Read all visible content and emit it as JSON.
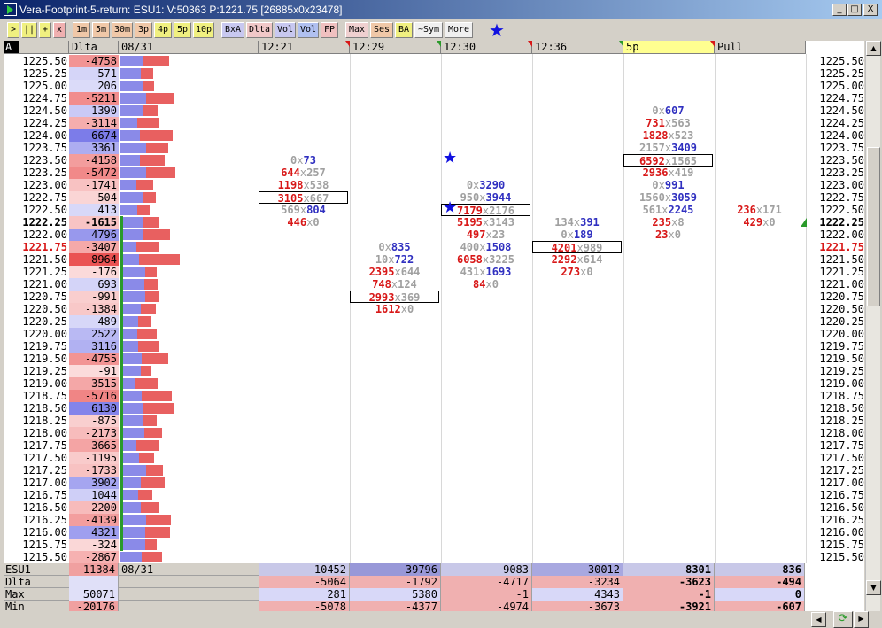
{
  "window": {
    "title": "Vera-Footprint-5-return: ESU1: V:50363 P:1221.75 [26885x0x23478]",
    "min": "_",
    "max": "□",
    "close": "X"
  },
  "toolbar": [
    {
      "label": ">",
      "bg": "#f0f080",
      "w": 14
    },
    {
      "label": "||",
      "bg": "#f0f080",
      "w": 18
    },
    {
      "label": "+",
      "bg": "#f0f080",
      "w": 14
    },
    {
      "label": "x",
      "bg": "#f0b0b0",
      "w": 14
    },
    {
      "label": "1m",
      "bg": "#f0c8a8",
      "w": 20
    },
    {
      "label": "5m",
      "bg": "#f0c8a8",
      "w": 20
    },
    {
      "label": "30m",
      "bg": "#f0c8a8",
      "w": 24
    },
    {
      "label": "3p",
      "bg": "#f0c8a8",
      "w": 20
    },
    {
      "label": "4p",
      "bg": "#f0f080",
      "w": 20
    },
    {
      "label": "5p",
      "bg": "#f0f080",
      "w": 20
    },
    {
      "label": "10p",
      "bg": "#f0f080",
      "w": 24
    },
    {
      "label": "BxA",
      "bg": "#c8c8f0",
      "w": 26
    },
    {
      "label": "Dlta",
      "bg": "#f0c8c8",
      "w": 30
    },
    {
      "label": "Vol",
      "bg": "#c8c8f0",
      "w": 24
    },
    {
      "label": "Vol",
      "bg": "#b0c0f0",
      "w": 24
    },
    {
      "label": "FP",
      "bg": "#f0c0c0",
      "w": 20
    },
    {
      "label": "Max",
      "bg": "#f0d0d0",
      "w": 26
    },
    {
      "label": "Ses",
      "bg": "#f0c8a8",
      "w": 26
    },
    {
      "label": "BA",
      "bg": "#f0f080",
      "w": 20
    },
    {
      "label": "~Sym",
      "bg": "#f0f0f0",
      "w": 32
    },
    {
      "label": "More",
      "bg": "#f0f0f0",
      "w": 32
    }
  ],
  "header": {
    "a": "A",
    "dlta": "Dlta",
    "date": "08/31",
    "times": [
      "12:21",
      "12:29",
      "12:30",
      "12:36",
      "5p",
      "Pull"
    ]
  },
  "rows": [
    {
      "p": "1225.50",
      "d": "-4758"
    },
    {
      "p": "1225.25",
      "d": "571"
    },
    {
      "p": "1225.00",
      "d": "206"
    },
    {
      "p": "1224.75",
      "d": "-5211"
    },
    {
      "p": "1224.50",
      "d": "1390"
    },
    {
      "p": "1224.25",
      "d": "-3114"
    },
    {
      "p": "1224.00",
      "d": "6674"
    },
    {
      "p": "1223.75",
      "d": "3361"
    },
    {
      "p": "1223.50",
      "d": "-4158"
    },
    {
      "p": "1223.25",
      "d": "-5472"
    },
    {
      "p": "1223.00",
      "d": "-1741"
    },
    {
      "p": "1222.75",
      "d": "-504"
    },
    {
      "p": "1222.50",
      "d": "413"
    },
    {
      "p": "1222.25",
      "d": "-1615"
    },
    {
      "p": "1222.00",
      "d": "4796"
    },
    {
      "p": "1221.75",
      "d": "-3407"
    },
    {
      "p": "1221.50",
      "d": "-8964"
    },
    {
      "p": "1221.25",
      "d": "-176"
    },
    {
      "p": "1221.00",
      "d": "693"
    },
    {
      "p": "1220.75",
      "d": "-991"
    },
    {
      "p": "1220.50",
      "d": "-1384"
    },
    {
      "p": "1220.25",
      "d": "489"
    },
    {
      "p": "1220.00",
      "d": "2522"
    },
    {
      "p": "1219.75",
      "d": "3116"
    },
    {
      "p": "1219.50",
      "d": "-4755"
    },
    {
      "p": "1219.25",
      "d": "-91"
    },
    {
      "p": "1219.00",
      "d": "-3515"
    },
    {
      "p": "1218.75",
      "d": "-5716"
    },
    {
      "p": "1218.50",
      "d": "6130"
    },
    {
      "p": "1218.25",
      "d": "-875"
    },
    {
      "p": "1218.00",
      "d": "-2173"
    },
    {
      "p": "1217.75",
      "d": "-3665"
    },
    {
      "p": "1217.50",
      "d": "-1195"
    },
    {
      "p": "1217.25",
      "d": "-1733"
    },
    {
      "p": "1217.00",
      "d": "3902"
    },
    {
      "p": "1216.75",
      "d": "1044"
    },
    {
      "p": "1216.50",
      "d": "-2200"
    },
    {
      "p": "1216.25",
      "d": "-4139"
    },
    {
      "p": "1216.00",
      "d": "4321"
    },
    {
      "p": "1215.75",
      "d": "-324"
    },
    {
      "p": "1215.50",
      "d": "-2867"
    }
  ],
  "footprint": [
    [
      {
        "r": 8,
        "b": "0",
        "a": "73"
      },
      {
        "r": 9,
        "b": "644",
        "a": "257"
      },
      {
        "r": 10,
        "b": "1198",
        "a": "538"
      },
      {
        "r": 11,
        "b": "3105",
        "a": "667",
        "box": true
      },
      {
        "r": 12,
        "b": "569",
        "a": "804"
      },
      {
        "r": 13,
        "b": "446",
        "a": "0"
      }
    ],
    [
      {
        "r": 15,
        "b": "0",
        "a": "835"
      },
      {
        "r": 16,
        "b": "10",
        "a": "722"
      },
      {
        "r": 17,
        "b": "2395",
        "a": "644"
      },
      {
        "r": 18,
        "b": "748",
        "a": "124"
      },
      {
        "r": 19,
        "b": "2993",
        "a": "369",
        "box": true
      },
      {
        "r": 20,
        "b": "1612",
        "a": "0"
      }
    ],
    [
      {
        "r": 10,
        "b": "0",
        "a": "3290"
      },
      {
        "r": 11,
        "b": "950",
        "a": "3944"
      },
      {
        "r": 12,
        "b": "7179",
        "a": "2176",
        "box": true
      },
      {
        "r": 13,
        "b": "5195",
        "a": "3143"
      },
      {
        "r": 14,
        "b": "497",
        "a": "23"
      },
      {
        "r": 15,
        "b": "400",
        "a": "1508"
      },
      {
        "r": 16,
        "b": "6058",
        "a": "3225"
      },
      {
        "r": 17,
        "b": "431",
        "a": "1693"
      },
      {
        "r": 18,
        "b": "84",
        "a": "0"
      }
    ],
    [
      {
        "r": 13,
        "b": "134",
        "a": "391"
      },
      {
        "r": 14,
        "b": "0",
        "a": "189"
      },
      {
        "r": 15,
        "b": "4201",
        "a": "989",
        "box": true
      },
      {
        "r": 16,
        "b": "2292",
        "a": "614"
      },
      {
        "r": 17,
        "b": "273",
        "a": "0"
      }
    ],
    [
      {
        "r": 4,
        "b": "0",
        "a": "607"
      },
      {
        "r": 5,
        "b": "731",
        "a": "563"
      },
      {
        "r": 6,
        "b": "1828",
        "a": "523"
      },
      {
        "r": 7,
        "b": "2157",
        "a": "3409"
      },
      {
        "r": 8,
        "b": "6592",
        "a": "1565",
        "box": true
      },
      {
        "r": 9,
        "b": "2936",
        "a": "419"
      },
      {
        "r": 10,
        "b": "0",
        "a": "991"
      },
      {
        "r": 11,
        "b": "1560",
        "a": "3059"
      },
      {
        "r": 12,
        "b": "561",
        "a": "2245"
      },
      {
        "r": 13,
        "b": "235",
        "a": "8"
      },
      {
        "r": 14,
        "b": "23",
        "a": "0"
      }
    ],
    [
      {
        "r": 12,
        "b": "236",
        "a": "171"
      },
      {
        "r": 13,
        "b": "429",
        "a": "0"
      }
    ]
  ],
  "footer": [
    {
      "label": "ESU1",
      "left": "-11384",
      "date": "08/31",
      "vals": [
        "10452",
        "39796",
        "9083",
        "30012",
        "8301",
        "836"
      ]
    },
    {
      "label": "Dlta",
      "left": "",
      "date": "",
      "vals": [
        "-5064",
        "-1792",
        "-4717",
        "-3234",
        "-3623",
        "-494"
      ]
    },
    {
      "label": "Max",
      "left": "50071",
      "date": "",
      "vals": [
        "281",
        "5380",
        "-1",
        "4343",
        "-1",
        "0"
      ]
    },
    {
      "label": "Min",
      "left": "-20176",
      "date": "",
      "vals": [
        "-5078",
        "-4377",
        "-4974",
        "-3673",
        "-3921",
        "-607"
      ]
    }
  ],
  "colors": {
    "bid": "#d81818",
    "ask": "#3030c0",
    "neg": "#f08080",
    "pos": "#8080f0",
    "green": "#2a9a2a",
    "blue_star": "#1010e0"
  }
}
